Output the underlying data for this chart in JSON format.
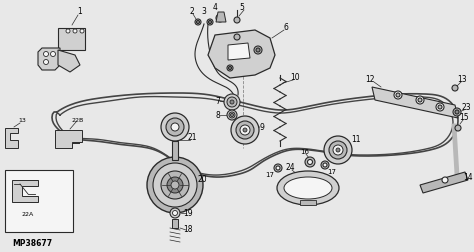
{
  "bg_color": "#e8e8e8",
  "line_color": "#2a2a2a",
  "fill_light": "#d0d0d0",
  "fill_mid": "#b8b8b8",
  "fill_dark": "#888888",
  "mp_label": "MP38677",
  "fig_width": 4.74,
  "fig_height": 2.52,
  "dpi": 100,
  "belt_color": "#444444",
  "white": "#f5f5f5"
}
